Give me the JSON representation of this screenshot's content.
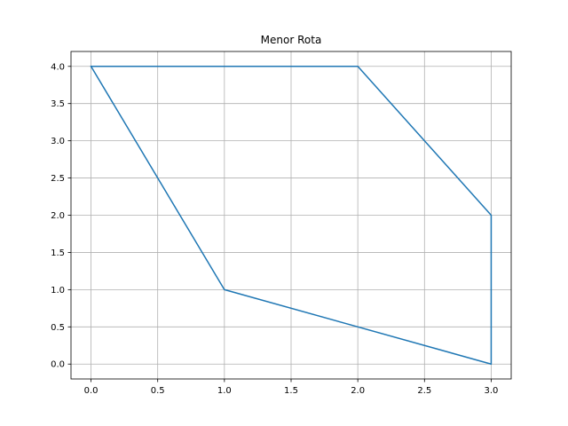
{
  "chart_data": {
    "type": "line",
    "title": "Menor Rota",
    "xlabel": "",
    "ylabel": "",
    "xlim": [
      -0.15,
      3.15
    ],
    "ylim": [
      -0.2,
      4.2
    ],
    "grid": true,
    "xticks": [
      0.0,
      0.5,
      1.0,
      1.5,
      2.0,
      2.5,
      3.0
    ],
    "xtick_labels": [
      "0.0",
      "0.5",
      "1.0",
      "1.5",
      "2.0",
      "2.5",
      "3.0"
    ],
    "yticks": [
      0.0,
      0.5,
      1.0,
      1.5,
      2.0,
      2.5,
      3.0,
      3.5,
      4.0
    ],
    "ytick_labels": [
      "0.0",
      "0.5",
      "1.0",
      "1.5",
      "2.0",
      "2.5",
      "3.0",
      "3.5",
      "4.0"
    ],
    "series": [
      {
        "color": "#1f77b4",
        "x": [
          0,
          2,
          3,
          3,
          1,
          0
        ],
        "y": [
          4,
          4,
          2,
          0,
          1,
          4
        ]
      }
    ]
  }
}
